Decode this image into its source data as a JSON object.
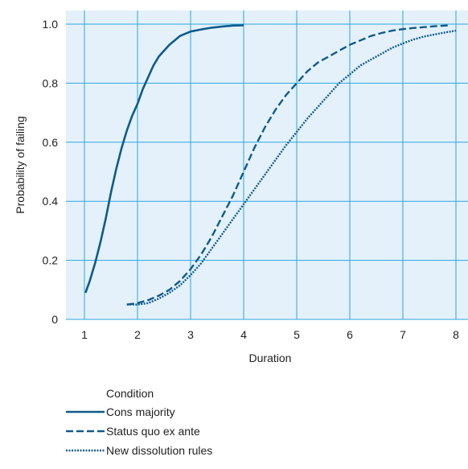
{
  "colors": {
    "plot_bg": "#e4f1fa",
    "grid": "#2aa6dd",
    "series": "#0f5b8c"
  },
  "chart_data": {
    "type": "line",
    "xlabel": "Duration",
    "ylabel": "Probability of failing",
    "xlim": [
      1,
      8
    ],
    "ylim": [
      0,
      1
    ],
    "grid": true,
    "legend_position": "bottom-left",
    "xticks": [
      1,
      2,
      3,
      4,
      5,
      6,
      7,
      8
    ],
    "xtick_labels": [
      "1",
      "2",
      "3",
      "4",
      "5",
      "6",
      "7",
      "8"
    ],
    "yticks": [
      0,
      0.2,
      0.4,
      0.6,
      0.8,
      1.0
    ],
    "ytick_labels": [
      "0",
      "0.2",
      "0.4",
      "0.6",
      "0.8",
      "1.0"
    ],
    "legend_title": "Condition",
    "series": [
      {
        "name": "Cons majority",
        "style": "solid",
        "x": [
          1.02,
          1.1,
          1.2,
          1.3,
          1.4,
          1.5,
          1.6,
          1.7,
          1.8,
          1.9,
          2.0,
          2.1,
          2.2,
          2.3,
          2.4,
          2.6,
          2.8,
          3.0,
          3.2,
          3.4,
          3.6,
          3.8,
          4.0
        ],
        "y": [
          0.09,
          0.13,
          0.19,
          0.26,
          0.34,
          0.43,
          0.51,
          0.58,
          0.64,
          0.69,
          0.73,
          0.78,
          0.82,
          0.86,
          0.89,
          0.93,
          0.96,
          0.975,
          0.982,
          0.988,
          0.992,
          0.995,
          0.996
        ]
      },
      {
        "name": "Status quo ex ante",
        "style": "dashed",
        "x": [
          1.8,
          2.0,
          2.2,
          2.4,
          2.6,
          2.8,
          3.0,
          3.2,
          3.4,
          3.6,
          3.8,
          4.0,
          4.2,
          4.4,
          4.6,
          4.8,
          5.0,
          5.2,
          5.4,
          5.6,
          5.8,
          6.0,
          6.2,
          6.4,
          6.6,
          6.8,
          7.0,
          7.2,
          7.4,
          7.6,
          7.8,
          7.9
        ],
        "y": [
          0.05,
          0.055,
          0.065,
          0.08,
          0.1,
          0.13,
          0.17,
          0.22,
          0.28,
          0.35,
          0.42,
          0.5,
          0.58,
          0.65,
          0.71,
          0.76,
          0.8,
          0.84,
          0.87,
          0.89,
          0.91,
          0.93,
          0.945,
          0.96,
          0.97,
          0.978,
          0.983,
          0.987,
          0.99,
          0.993,
          0.995,
          0.996
        ]
      },
      {
        "name": "New dissolution rules",
        "style": "dotted",
        "x": [
          1.8,
          2.0,
          2.2,
          2.4,
          2.6,
          2.8,
          3.0,
          3.2,
          3.4,
          3.6,
          3.8,
          4.0,
          4.2,
          4.4,
          4.6,
          4.8,
          5.0,
          5.2,
          5.4,
          5.6,
          5.8,
          6.0,
          6.2,
          6.4,
          6.6,
          6.8,
          7.0,
          7.2,
          7.4,
          7.6,
          7.8,
          8.0
        ],
        "y": [
          0.05,
          0.05,
          0.055,
          0.07,
          0.09,
          0.115,
          0.15,
          0.19,
          0.24,
          0.29,
          0.34,
          0.39,
          0.44,
          0.49,
          0.54,
          0.59,
          0.635,
          0.68,
          0.72,
          0.76,
          0.8,
          0.83,
          0.86,
          0.88,
          0.9,
          0.92,
          0.935,
          0.948,
          0.958,
          0.965,
          0.972,
          0.978
        ]
      }
    ]
  }
}
